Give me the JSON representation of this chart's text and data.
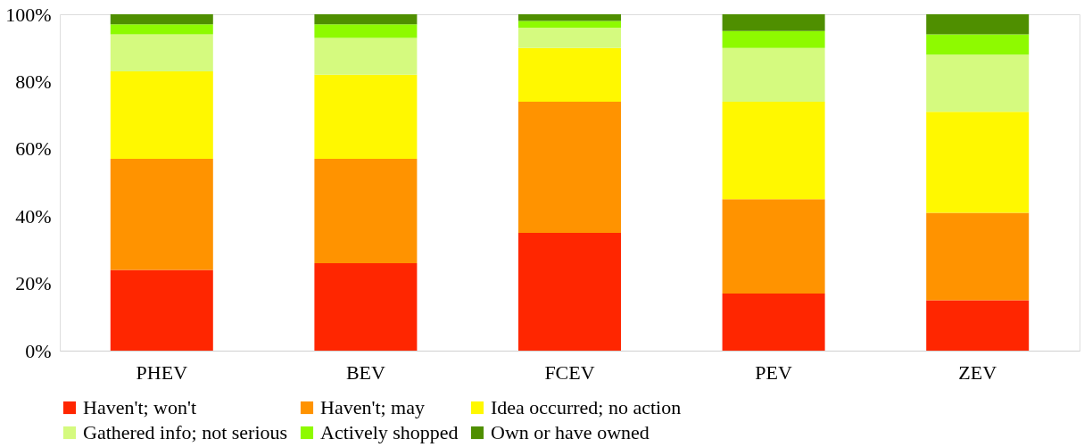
{
  "chart_data": {
    "type": "bar",
    "stacked": true,
    "categories": [
      "PHEV",
      "BEV",
      "FCEV",
      "PEV",
      "ZEV"
    ],
    "series": [
      {
        "name": "Haven't; won't",
        "color": "#ff2600",
        "values": [
          24,
          26,
          35,
          17,
          15
        ]
      },
      {
        "name": "Haven't; may",
        "color": "#ff9300",
        "values": [
          33,
          31,
          39,
          28,
          26
        ]
      },
      {
        "name": "Idea occurred; no action",
        "color": "#fff800",
        "values": [
          26,
          25,
          16,
          29,
          30
        ]
      },
      {
        "name": "Gathered info; not serious",
        "color": "#d5fa7f",
        "values": [
          11,
          11,
          6,
          16,
          17
        ]
      },
      {
        "name": "Actively shopped",
        "color": "#8efa00",
        "values": [
          3,
          4,
          2,
          5,
          6
        ]
      },
      {
        "name": "Own or have owned",
        "color": "#4f8f00",
        "values": [
          3,
          3,
          2,
          5,
          6
        ]
      }
    ],
    "ylim": [
      0,
      100
    ],
    "yticks": [
      {
        "value": 0,
        "label": "0%"
      },
      {
        "value": 20,
        "label": "20%"
      },
      {
        "value": 40,
        "label": "40%"
      },
      {
        "value": 60,
        "label": "60%"
      },
      {
        "value": 80,
        "label": "80%"
      },
      {
        "value": 100,
        "label": "100%"
      }
    ],
    "grid": false,
    "legend": "bottom"
  }
}
